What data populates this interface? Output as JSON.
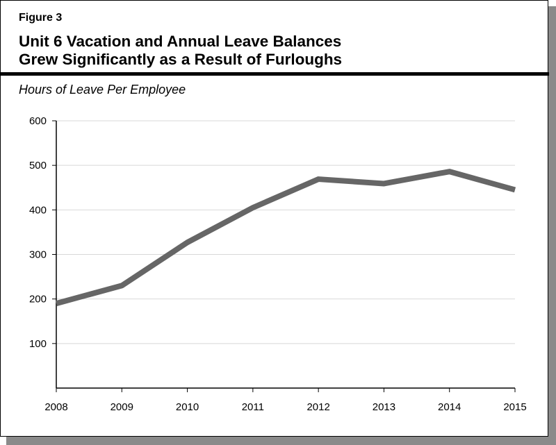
{
  "figure_label": "Figure 3",
  "title_lines": [
    "Unit 6 Vacation and Annual Leave Balances",
    "Grew Significantly as a Result of Furloughs"
  ],
  "chart_data": {
    "type": "line",
    "title": "Unit 6 Vacation and Annual Leave Balances Grew Significantly as a Result of Furloughs",
    "ylabel": "Hours of Leave Per Employee",
    "xlabel": "",
    "categories": [
      "2008",
      "2009",
      "2010",
      "2011",
      "2012",
      "2013",
      "2014",
      "2015"
    ],
    "values": [
      190,
      230,
      327,
      405,
      469,
      459,
      486,
      445
    ],
    "ylim": [
      0,
      600
    ],
    "yticks": [
      100,
      200,
      300,
      400,
      500,
      600
    ],
    "grid": true,
    "line_color": "#666666"
  }
}
